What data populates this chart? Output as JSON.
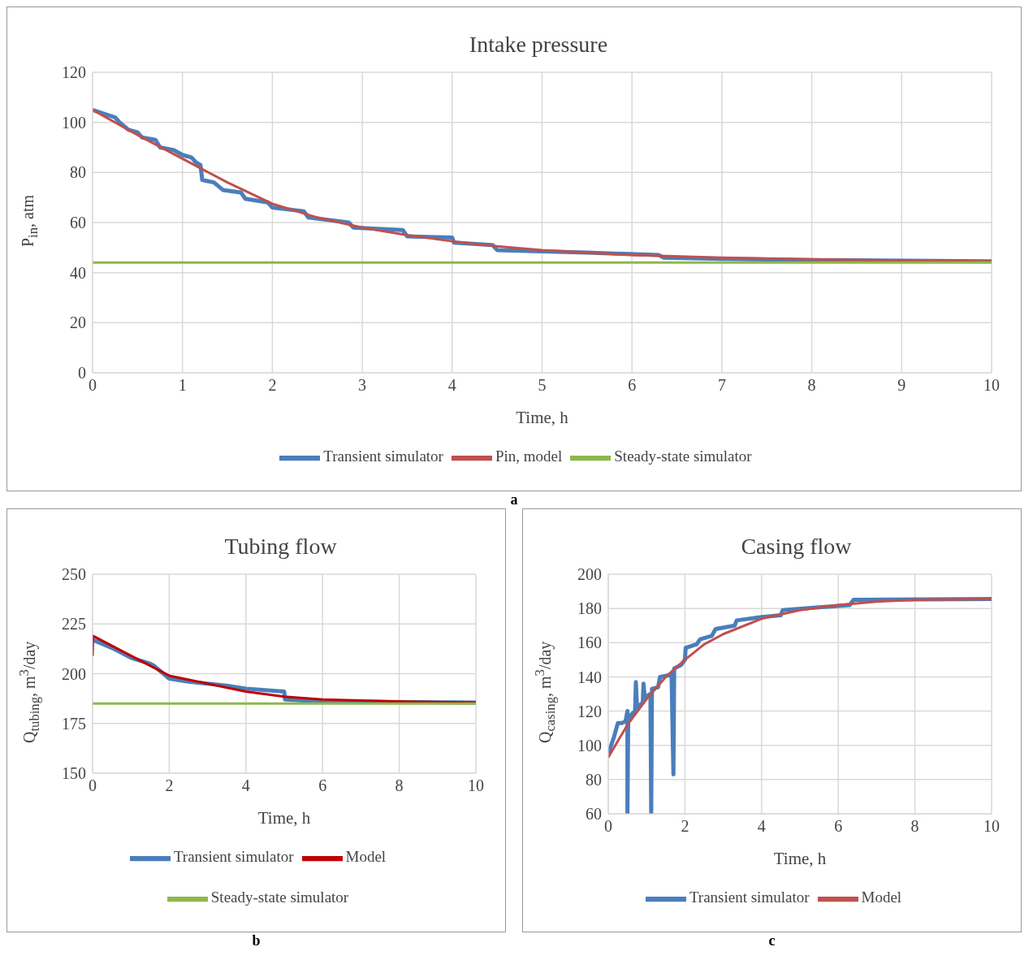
{
  "chart_data": [
    {
      "type": "line",
      "title": "Intake pressure",
      "xlabel": "Time, h",
      "ylabel": "P$_{in}$, atm",
      "annotations": [
        "a"
      ],
      "grid": true,
      "legend": "bottom",
      "marker": "none",
      "xlim": [
        0,
        10
      ],
      "xticks": [
        0,
        1,
        2,
        3,
        4,
        5,
        6,
        7,
        8,
        9,
        10
      ],
      "ylim": [
        0,
        120
      ],
      "yticks": [
        0,
        20,
        40,
        60,
        80,
        100,
        120
      ],
      "series": [
        {
          "name": "Transient simulator",
          "color": "#4a7ebb",
          "x": [
            0,
            0.25,
            0.3,
            0.4,
            0.5,
            0.55,
            0.7,
            0.75,
            0.9,
            1.0,
            1.1,
            1.15,
            1.2,
            1.22,
            1.35,
            1.45,
            1.65,
            1.7,
            1.95,
            2.0,
            2.35,
            2.4,
            2.85,
            2.9,
            3.45,
            3.5,
            4.0,
            4.02,
            4.45,
            4.5,
            5.5,
            6.3,
            6.35,
            7,
            8,
            10
          ],
          "values": [
            105,
            102,
            100,
            97,
            96,
            94,
            93,
            90,
            89,
            87,
            86,
            84,
            83,
            77,
            76,
            73,
            72,
            69.5,
            68,
            66,
            64.5,
            62,
            60,
            58,
            57,
            54.5,
            54,
            52,
            51,
            49,
            48,
            47,
            46,
            45.5,
            45,
            44.5
          ]
        },
        {
          "name": "Pin, model",
          "color": "#c0504d",
          "x": [
            0,
            0.5,
            1,
            1.5,
            2,
            2.5,
            3,
            3.5,
            4,
            4.5,
            5,
            6,
            7,
            8,
            9,
            10
          ],
          "values": [
            105,
            95,
            85.5,
            76,
            67.5,
            62,
            58,
            55,
            52.5,
            50.5,
            49,
            47,
            46,
            45.3,
            44.8,
            44.5
          ]
        },
        {
          "name": "Steady-state simulator",
          "color": "#8db84a",
          "x": [
            0,
            10
          ],
          "values": [
            44,
            44
          ]
        }
      ]
    },
    {
      "type": "line",
      "title": "Tubing flow",
      "xlabel": "Time, h",
      "ylabel": "Q$_{tubing}$, m$^{3}$/day",
      "annotations": [
        "b"
      ],
      "grid": true,
      "legend": "bottom",
      "marker": "none",
      "xlim": [
        0,
        10
      ],
      "xticks": [
        0,
        2,
        4,
        6,
        8,
        10
      ],
      "ylim": [
        150,
        250
      ],
      "yticks": [
        150,
        175,
        200,
        225,
        250
      ],
      "series": [
        {
          "name": "Transient simulator",
          "color": "#4a7ebb",
          "x": [
            0,
            0.5,
            1,
            1.5,
            1.6,
            2.0,
            2.5,
            3,
            3.5,
            4,
            5,
            5.02,
            6,
            10
          ],
          "values": [
            217,
            213,
            208,
            205,
            204,
            197.5,
            196,
            195,
            194,
            192.5,
            191,
            187,
            186,
            185.5
          ]
        },
        {
          "name": "Model",
          "color": "#c00000",
          "x": [
            0,
            0.01,
            1,
            2,
            3,
            4,
            5,
            6,
            8,
            10
          ],
          "values": [
            209,
            219,
            209,
            199,
            195,
            191,
            188.5,
            187,
            186,
            185.5
          ]
        },
        {
          "name": "Steady-state simulator",
          "color": "#8db84a",
          "x": [
            0,
            10
          ],
          "values": [
            185,
            185
          ]
        }
      ]
    },
    {
      "type": "line",
      "title": "Casing flow",
      "xlabel": "Time, h",
      "ylabel": "Q$_{casing}$, m$^{3}$/day",
      "annotations": [
        "c"
      ],
      "grid": true,
      "legend": "bottom",
      "marker": "none",
      "xlim": [
        0,
        10
      ],
      "xticks": [
        0,
        2,
        4,
        6,
        8,
        10
      ],
      "ylim": [
        60,
        200
      ],
      "yticks": [
        60,
        80,
        100,
        120,
        140,
        160,
        180,
        200
      ],
      "series": [
        {
          "name": "Transient simulator",
          "color": "#4a7ebb",
          "x": [
            0,
            0.15,
            0.25,
            0.35,
            0.45,
            0.5,
            0.5,
            0.52,
            0.6,
            0.7,
            0.72,
            0.75,
            0.9,
            0.92,
            0.95,
            1.1,
            1.12,
            1.14,
            1.3,
            1.35,
            1.6,
            1.65,
            1.7,
            1.72,
            1.9,
            2.0,
            2.02,
            2.3,
            2.4,
            2.7,
            2.8,
            3.3,
            3.35,
            4,
            4.5,
            4.55,
            6.3,
            6.4,
            10
          ],
          "values": [
            95,
            105,
            113,
            113,
            114,
            120,
            60,
            115,
            118,
            120,
            137,
            122,
            125,
            136,
            128,
            130,
            60,
            133,
            134,
            140,
            141,
            142,
            83,
            145,
            147,
            150,
            157,
            159,
            162,
            164,
            168,
            170,
            173,
            175,
            176,
            179,
            182,
            185,
            185.5
          ]
        },
        {
          "name": "Model",
          "color": "#c0504d",
          "x": [
            0,
            0.5,
            1,
            1.5,
            2,
            2.5,
            3,
            4,
            5,
            6,
            7,
            8,
            10
          ],
          "values": [
            93,
            112,
            127,
            140,
            150,
            159,
            165,
            174,
            179,
            182,
            184,
            185,
            185.5
          ]
        }
      ]
    }
  ]
}
